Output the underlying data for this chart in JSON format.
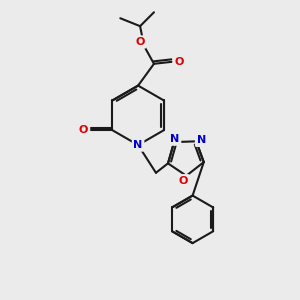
{
  "bg_color": "#ebebeb",
  "bond_color": "#1a1a1a",
  "N_color": "#0000cc",
  "O_color": "#dd0000",
  "lw": 1.5,
  "fs": 8,
  "figsize": [
    3.0,
    3.0
  ],
  "dpi": 100,
  "xlim": [
    0,
    300
  ],
  "ylim": [
    0,
    300
  ]
}
